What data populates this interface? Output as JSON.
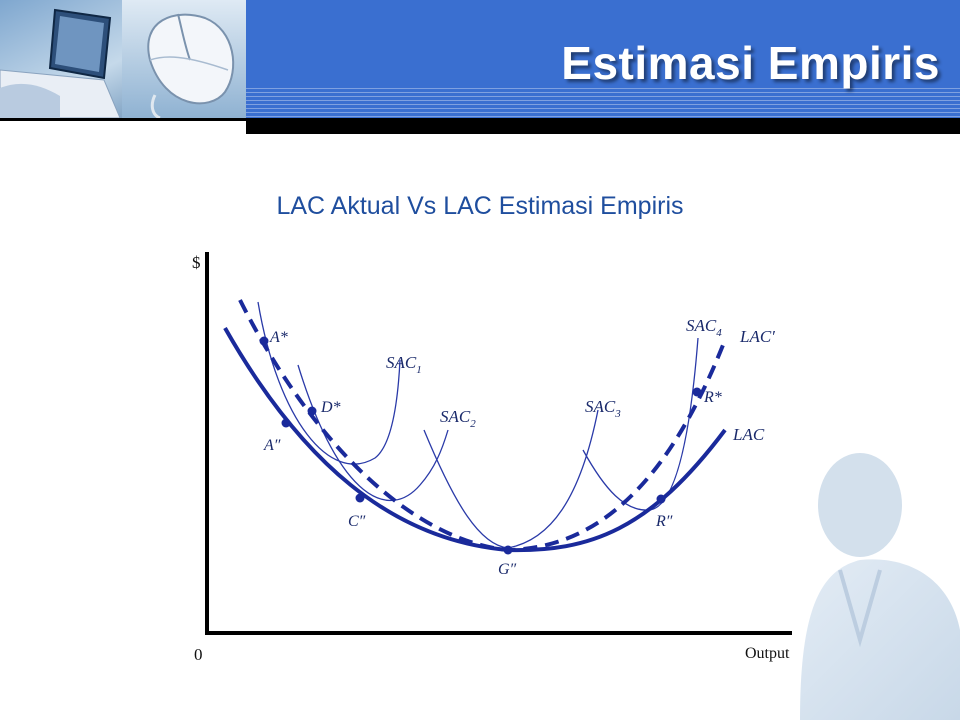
{
  "header": {
    "title": "Estimasi Empiris",
    "accent_color": "#3a6fd0",
    "decor_icons": [
      "laptop-icon",
      "computer-mouse-icon"
    ]
  },
  "subtitle": "LAC Aktual  Vs LAC Estimasi Empiris",
  "diagram": {
    "y_axis_label": "$",
    "x_axis_label": "Output",
    "origin_label": "0",
    "curve_labels": {
      "sac1": "SAC",
      "sac1_sub": "1",
      "sac2": "SAC",
      "sac2_sub": "2",
      "sac3": "SAC",
      "sac3_sub": "3",
      "sac4": "SAC",
      "sac4_sub": "4",
      "lac_prime": "LAC′",
      "lac": "LAC"
    },
    "point_labels": {
      "a_star": "A*",
      "d_star": "D*",
      "a_dprime": "A″",
      "c_dprime": "C″",
      "g_dprime": "G″",
      "r_dprime": "R″",
      "r_star": "R*"
    },
    "colors": {
      "curve": "#1a2a9b",
      "axis": "#000000"
    }
  }
}
